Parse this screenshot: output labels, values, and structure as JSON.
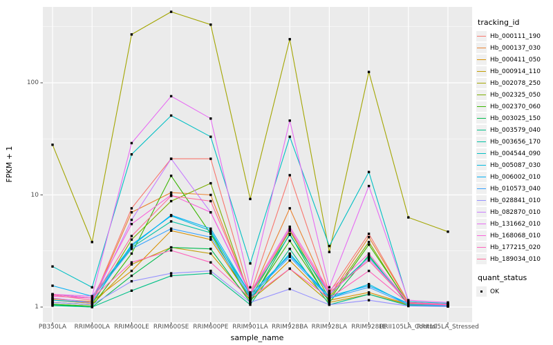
{
  "figure": {
    "bg": "#FFFFFF",
    "panel_bg": "#EBEBEB",
    "grid_color": "#FFFFFF",
    "axis_text_color": "#4D4D4D",
    "tick_color": "#333333",
    "point_color": "#000000",
    "legend_key_bg": "#F0F0F0"
  },
  "axes": {
    "y_title": "FPKM + 1",
    "x_title": "sample_name",
    "y_tick_labels": [
      "1",
      "10",
      "100"
    ]
  },
  "legend": {
    "tracking_title": "tracking_id",
    "quant_title": "quant_status",
    "quant_ok_label": "OK"
  },
  "chart_data": {
    "type": "line",
    "title": "",
    "xlabel": "sample_name",
    "ylabel": "FPKM + 1",
    "y_scale": "log10",
    "y_ticks": [
      1,
      10,
      100
    ],
    "y_minor_ticks": [
      3.162,
      31.623,
      316.23
    ],
    "ylim": [
      0.73,
      475
    ],
    "grid": true,
    "legend_position": "right",
    "legend_titles": [
      "tracking_id",
      "quant_status"
    ],
    "quant_status": "OK",
    "marker": "filled-square-black",
    "categories": [
      "PB350LA",
      "RRIM600LA",
      "RRIM600LE",
      "RRIM600SE",
      "RRIM600PE",
      "RRIM901LA",
      "RRIM928BA",
      "RRIM928LA",
      "RRIM928LE",
      "RRII105LA_Control",
      "RRII105LA_Stressed"
    ],
    "series": [
      {
        "name": "Hb_000111_190",
        "color": "#F8766D",
        "values": [
          1.2,
          1.1,
          7.6,
          21,
          21,
          1.3,
          15,
          1.35,
          4.5,
          1.1,
          1.05
        ]
      },
      {
        "name": "Hb_000137_030",
        "color": "#EA8331",
        "values": [
          1.15,
          1.08,
          7.0,
          10.5,
          10,
          1.25,
          7.6,
          1.25,
          4.2,
          1.1,
          1.05
        ]
      },
      {
        "name": "Hb_000411_050",
        "color": "#D89000",
        "values": [
          1.18,
          1.12,
          2.1,
          4.8,
          4.0,
          1.2,
          2.6,
          1.15,
          1.35,
          1.06,
          1.03
        ]
      },
      {
        "name": "Hb_000914_110",
        "color": "#C09B00",
        "values": [
          1.1,
          1.05,
          2.4,
          3.4,
          3.0,
          1.15,
          2.2,
          1.1,
          1.3,
          1.05,
          1.02
        ]
      },
      {
        "name": "Hb_002078_250",
        "color": "#A3A500",
        "values": [
          28,
          3.8,
          270,
          430,
          330,
          9.2,
          245,
          3.1,
          125,
          6.3,
          4.7
        ]
      },
      {
        "name": "Hb_002325_050",
        "color": "#7CAE00",
        "values": [
          1.1,
          1.05,
          4.0,
          8.8,
          12.7,
          1.2,
          4.8,
          1.2,
          3.8,
          1.06,
          1.03
        ]
      },
      {
        "name": "Hb_002370_060",
        "color": "#39B600",
        "values": [
          1.06,
          1.02,
          3.0,
          14.8,
          4.5,
          1.15,
          3.9,
          1.15,
          3.6,
          1.08,
          1.05
        ]
      },
      {
        "name": "Hb_003025_150",
        "color": "#00BB4E",
        "values": [
          1.05,
          1.0,
          1.9,
          3.4,
          3.3,
          1.1,
          4.5,
          1.1,
          2.9,
          1.05,
          1.03
        ]
      },
      {
        "name": "Hb_003579_040",
        "color": "#00C087",
        "values": [
          1.03,
          1.0,
          1.4,
          1.9,
          2.0,
          1.05,
          3.3,
          1.05,
          1.3,
          1.03,
          1.02
        ]
      },
      {
        "name": "Hb_003656_170",
        "color": "#00C1A3",
        "values": [
          1.3,
          1.2,
          3.4,
          5.8,
          4.6,
          1.3,
          4.4,
          1.3,
          2.8,
          1.1,
          1.05
        ]
      },
      {
        "name": "Hb_004544_090",
        "color": "#00BFC4",
        "values": [
          2.3,
          1.5,
          23,
          51,
          33,
          2.45,
          33,
          3.5,
          16,
          1.12,
          1.08
        ]
      },
      {
        "name": "Hb_005087_030",
        "color": "#00BAE0",
        "values": [
          1.15,
          1.1,
          3.6,
          6.5,
          4.8,
          1.2,
          3.0,
          1.2,
          1.6,
          1.05,
          1.03
        ]
      },
      {
        "name": "Hb_006002_010",
        "color": "#00B0F6",
        "values": [
          1.55,
          1.25,
          3.5,
          6.6,
          5.0,
          1.3,
          2.9,
          1.25,
          1.55,
          1.08,
          1.05
        ]
      },
      {
        "name": "Hb_010573_040",
        "color": "#35A2FF",
        "values": [
          1.3,
          1.2,
          3.3,
          5.0,
          4.2,
          1.25,
          2.8,
          1.2,
          1.5,
          1.05,
          1.03
        ]
      },
      {
        "name": "Hb_028841_010",
        "color": "#9590FF",
        "values": [
          1.1,
          1.05,
          1.7,
          2.0,
          2.1,
          1.1,
          1.45,
          1.05,
          1.15,
          1.02,
          1.01
        ]
      },
      {
        "name": "Hb_082870_010",
        "color": "#C77CFF",
        "values": [
          1.2,
          1.1,
          6.0,
          21,
          7.0,
          1.3,
          5.0,
          1.3,
          2.7,
          1.1,
          1.05
        ]
      },
      {
        "name": "Hb_131662_010",
        "color": "#E76BF3",
        "values": [
          1.3,
          1.25,
          29,
          76,
          48,
          1.5,
          46,
          1.5,
          12,
          1.15,
          1.1
        ]
      },
      {
        "name": "Hb_168068_010",
        "color": "#FA62DB",
        "values": [
          1.25,
          1.2,
          5.5,
          10,
          7.0,
          1.35,
          5.2,
          1.4,
          3.0,
          1.1,
          1.06
        ]
      },
      {
        "name": "Hb_177215_020",
        "color": "#FF62BC",
        "values": [
          1.3,
          1.2,
          2.5,
          3.2,
          2.5,
          1.2,
          2.2,
          1.2,
          2.1,
          1.08,
          1.04
        ]
      },
      {
        "name": "Hb_189034_010",
        "color": "#FF6A98",
        "values": [
          1.28,
          1.15,
          4.3,
          9.8,
          8.8,
          1.3,
          4.9,
          1.35,
          2.6,
          1.1,
          1.05
        ]
      }
    ]
  }
}
